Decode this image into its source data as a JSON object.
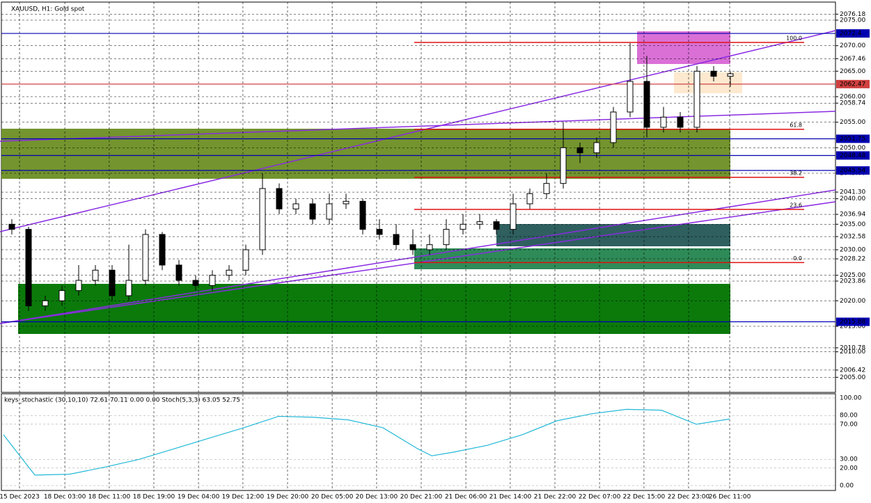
{
  "chart_data": [
    {
      "type": "candlestick",
      "title": "XAUUSD, H1:  Gold spot",
      "xlim": [
        -0.5,
        43.5
      ],
      "xticks": [
        {
          "value": 0.46,
          "label": "15 Dec 2023"
        },
        {
          "value": 3.17,
          "label": "18 Dec 03:00"
        },
        {
          "value": 5.83,
          "label": "18 Dec 11:00"
        },
        {
          "value": 8.5,
          "label": "18 Dec 19:00"
        },
        {
          "value": 11.17,
          "label": "19 Dec 04:00"
        },
        {
          "value": 13.83,
          "label": "19 Dec 12:00"
        },
        {
          "value": 16.5,
          "label": "19 Dec 20:00"
        },
        {
          "value": 19.17,
          "label": "20 Dec 05:00"
        },
        {
          "value": 21.83,
          "label": "20 Dec 13:00"
        },
        {
          "value": 24.5,
          "label": "20 Dec 21:00"
        },
        {
          "value": 27.17,
          "label": "21 Dec 06:00"
        },
        {
          "value": 29.83,
          "label": "21 Dec 14:00"
        },
        {
          "value": 32.5,
          "label": "21 Dec 22:00"
        },
        {
          "value": 35.17,
          "label": "22 Dec 07:00"
        },
        {
          "value": 37.83,
          "label": "22 Dec 15:00"
        },
        {
          "value": 40.5,
          "label": "22 Dec 23:00"
        },
        {
          "value": 42.96,
          "label": "26 Dec 11:00"
        }
      ],
      "ylim": [
        2002.18,
        2078.27
      ],
      "yticks": [
        {
          "value": 2076.18,
          "label": "2076.18"
        },
        {
          "value": 2075,
          "label": "2075.00"
        },
        {
          "value": 2070,
          "label": "2070.00"
        },
        {
          "value": 2067.46,
          "label": "2067.46"
        },
        {
          "value": 2065,
          "label": "2065.00"
        },
        {
          "value": 2060,
          "label": "2060.00"
        },
        {
          "value": 2058.74,
          "label": "2058.74"
        },
        {
          "value": 2055,
          "label": "2055.00"
        },
        {
          "value": 2050,
          "label": "2050.00"
        },
        {
          "value": 2045,
          "label": "2045.00"
        },
        {
          "value": 2041.3,
          "label": "2041.30"
        },
        {
          "value": 2040,
          "label": "2040.00"
        },
        {
          "value": 2036.94,
          "label": "2036.94"
        },
        {
          "value": 2035,
          "label": "2035.00"
        },
        {
          "value": 2032.58,
          "label": "2032.58"
        },
        {
          "value": 2030,
          "label": "2030.00"
        },
        {
          "value": 2028.22,
          "label": "2028.22"
        },
        {
          "value": 2025,
          "label": "2025.00"
        },
        {
          "value": 2023.86,
          "label": "2023.86"
        },
        {
          "value": 2020,
          "label": "2020.00"
        },
        {
          "value": 2015,
          "label": "2015.00"
        },
        {
          "value": 2010.78,
          "label": "2010.78"
        },
        {
          "value": 2010,
          "label": "2010.00"
        },
        {
          "value": 2006.42,
          "label": "2006.42"
        },
        {
          "value": 2005,
          "label": "2005.00"
        }
      ],
      "grid": true,
      "price_lines": [
        2072.4,
        2062.47,
        2051.75,
        2048.48,
        2045.54,
        2015.88
      ],
      "fib_levels": [
        {
          "value": 2070.64,
          "label": "100.0"
        },
        {
          "value": 2053.6,
          "label": "61.8"
        },
        {
          "value": 2044.2,
          "label": "38.2"
        },
        {
          "value": 2037.9,
          "label": "23.6"
        },
        {
          "value": 2027.5,
          "label": "0.0"
        }
      ],
      "open": [
        2035,
        2034,
        2019,
        2020,
        2022,
        2024,
        2026,
        2021,
        2024,
        2033,
        2027,
        2024,
        2023,
        2025,
        2026,
        2030,
        2042,
        2038,
        2039,
        2036,
        2039,
        2039.5,
        2034,
        2033,
        2031,
        2030,
        2031,
        2034,
        2035,
        2035.5,
        2034,
        2039,
        2041,
        2043,
        2050,
        2049,
        2051,
        2057,
        2063,
        2054,
        2056,
        2054,
        2065,
        2064
      ],
      "high": [
        2036,
        2034.5,
        2021,
        2023,
        2027,
        2027,
        2027,
        2031,
        2034,
        2033.5,
        2028,
        2025,
        2026,
        2027,
        2031,
        2045,
        2043,
        2040,
        2040,
        2041,
        2041,
        2040,
        2036,
        2035,
        2034,
        2033,
        2036,
        2037,
        2037,
        2036,
        2041,
        2042,
        2045,
        2055,
        2051,
        2052,
        2058,
        2070.5,
        2068,
        2058,
        2057,
        2066,
        2066,
        2065
      ],
      "low": [
        2033,
        2018,
        2018,
        2019,
        2021,
        2023,
        2020,
        2020,
        2023,
        2026,
        2023,
        2022,
        2022,
        2024,
        2025,
        2029,
        2037,
        2037,
        2035,
        2035,
        2038,
        2033,
        2032,
        2030,
        2029,
        2029,
        2030,
        2033,
        2034,
        2033,
        2033,
        2038,
        2040,
        2042,
        2047,
        2048,
        2050,
        2056,
        2052,
        2053,
        2053,
        2053,
        2063,
        2062
      ],
      "close": [
        2034,
        2019,
        2020,
        2022,
        2024,
        2026,
        2021,
        2024,
        2033,
        2027,
        2024,
        2023,
        2025,
        2026,
        2030,
        2042,
        2038,
        2039,
        2036,
        2039,
        2039.5,
        2034,
        2033,
        2031,
        2030,
        2031,
        2034,
        2035,
        2035.5,
        2034,
        2039,
        2041,
        2043,
        2050,
        2049,
        2051,
        2057,
        2063,
        2054,
        2056,
        2054,
        2065,
        2064,
        2064.5
      ]
    },
    {
      "type": "line",
      "title": "keys_stochastic (30,10,10) 72.61 70.11 0.00 0.00 Stoch(5,3,3) 63.05 52.75",
      "xlim": [
        -0.5,
        43.5
      ],
      "ylim": [
        0,
        100
      ],
      "yticks": [
        {
          "value": 100,
          "label": "100.00"
        },
        {
          "value": 80,
          "label": "80.00"
        },
        {
          "value": 70,
          "label": "70.00"
        },
        {
          "value": 30,
          "label": "30.00"
        },
        {
          "value": 20,
          "label": "20.00"
        },
        {
          "value": 0,
          "label": "0.00"
        }
      ],
      "x": [
        -0.5,
        1.38,
        3.46,
        5.54,
        7.63,
        9.71,
        11.79,
        13.88,
        15.96,
        18.04,
        20.13,
        22.21,
        24.29,
        25.13,
        26.38,
        28.46,
        30.54,
        32.63,
        34.71,
        36.79,
        38.88,
        40.96,
        42.96
      ],
      "series": [
        {
          "color": "#22b8d8",
          "values": [
            58,
            12,
            13,
            21,
            30,
            42,
            54,
            66,
            79,
            78,
            75,
            66,
            42,
            34,
            38,
            46,
            58,
            74,
            82,
            87,
            86,
            70,
            76
          ]
        }
      ]
    }
  ]
}
